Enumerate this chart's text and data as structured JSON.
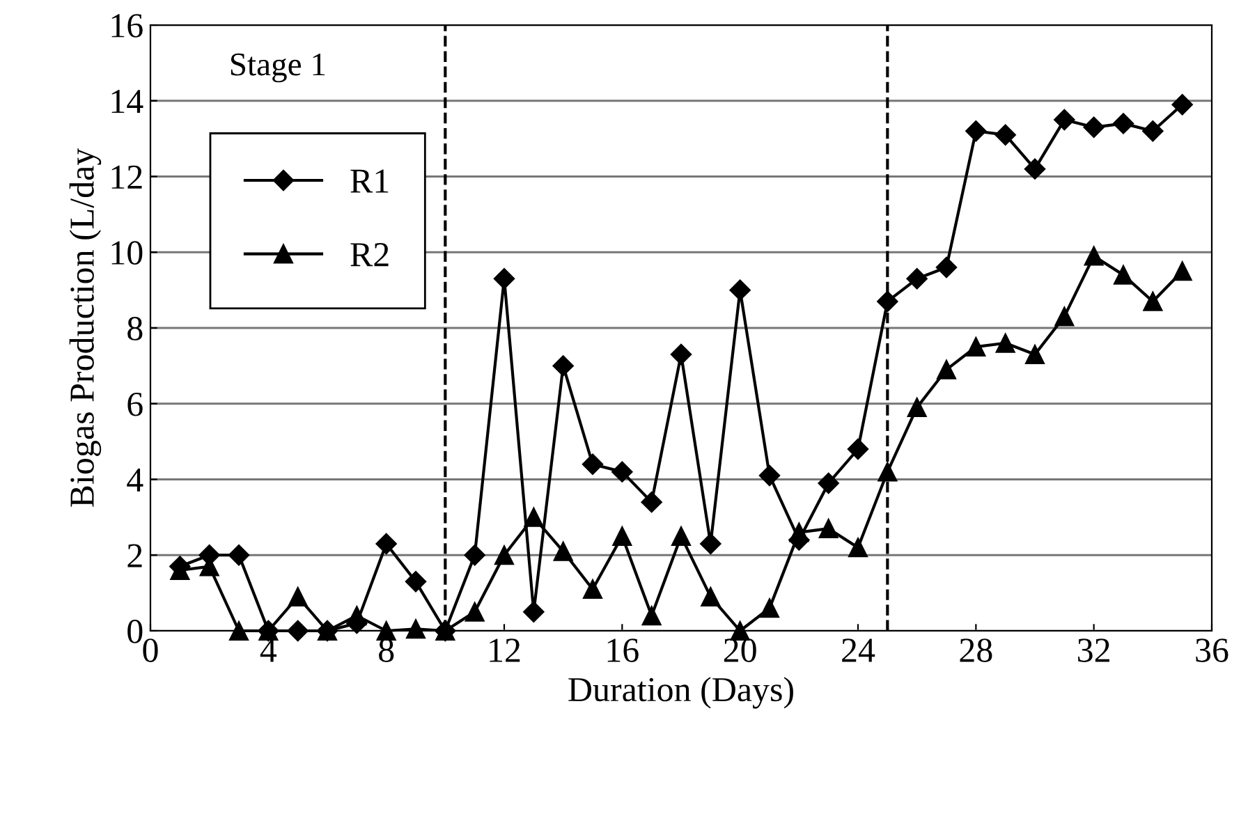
{
  "chart_data": {
    "type": "line",
    "xlabel": "Duration (Days)",
    "ylabel": "Biogas Production (L/day",
    "x": [
      1,
      2,
      3,
      4,
      5,
      6,
      7,
      8,
      9,
      10,
      11,
      12,
      13,
      14,
      15,
      16,
      17,
      18,
      19,
      20,
      21,
      22,
      23,
      24,
      25,
      26,
      27,
      28,
      29,
      30,
      31,
      32,
      33,
      34,
      35
    ],
    "series": [
      {
        "name": "R1",
        "color": "#000000",
        "marker": "diamond",
        "values": [
          1.7,
          2.0,
          2.0,
          0,
          0,
          0,
          0.2,
          2.3,
          1.3,
          0,
          2.0,
          9.3,
          0.5,
          7.0,
          4.4,
          4.2,
          3.4,
          7.3,
          2.3,
          9.0,
          4.1,
          2.4,
          3.9,
          4.8,
          8.7,
          9.3,
          9.6,
          13.2,
          13.1,
          12.2,
          13.5,
          13.3,
          13.4,
          13.2,
          13.9
        ]
      },
      {
        "name": "R2",
        "color": "#000000",
        "marker": "triangle",
        "values": [
          1.6,
          1.7,
          0,
          0,
          0.9,
          0,
          0.4,
          0,
          0.05,
          0,
          0.5,
          2.0,
          3.0,
          2.1,
          1.1,
          2.5,
          0.4,
          2.5,
          0.9,
          0,
          0.6,
          2.6,
          2.7,
          2.2,
          4.2,
          5.9,
          6.9,
          7.5,
          7.6,
          7.3,
          8.3,
          9.9,
          9.4,
          8.7,
          9.5
        ]
      }
    ],
    "xlim": [
      0,
      36
    ],
    "xticks": [
      0,
      4,
      8,
      12,
      16,
      20,
      24,
      28,
      32,
      36
    ],
    "ylim": [
      0,
      16
    ],
    "yticks": [
      0,
      2,
      4,
      6,
      8,
      10,
      12,
      14,
      16
    ],
    "ref_lines": [
      {
        "axis": "x",
        "value": 10,
        "line_style": "dashed",
        "color": "#000000"
      },
      {
        "axis": "x",
        "value": 25,
        "line_style": "dashed",
        "color": "#000000"
      }
    ],
    "annotations": [
      "Stage 1"
    ],
    "grid": "y",
    "legend": "top left",
    "line_style": "solid"
  }
}
